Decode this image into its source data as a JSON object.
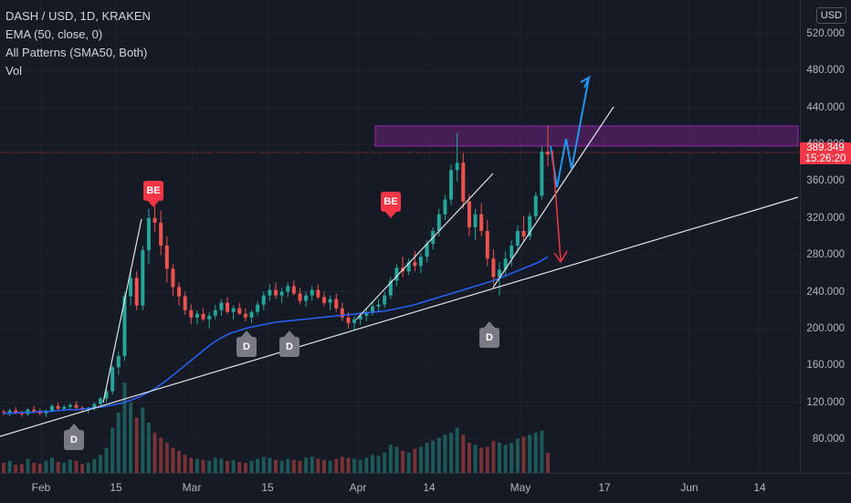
{
  "header": {
    "symbol_title": "DASH / USD, 1D, KRAKEN",
    "indicators": [
      "EMA (50, close, 0)",
      "All Patterns (SMA50, Both)",
      "Vol"
    ]
  },
  "currency_button": "USD",
  "price_axis": {
    "ticks": [
      "520.000",
      "480.000",
      "440.000",
      "400.000",
      "360.000",
      "320.000",
      "280.000",
      "240.000",
      "200.000",
      "160.000",
      "120.000",
      "80.000"
    ],
    "current_price": "389.349",
    "countdown": "15:26:20"
  },
  "time_axis": {
    "ticks": [
      "Feb",
      "15",
      "Mar",
      "15",
      "Apr",
      "14",
      "May",
      "17",
      "Jun",
      "14"
    ]
  },
  "pattern_labels": {
    "bearish": [
      "BE",
      "BE"
    ],
    "doji": [
      "D",
      "D",
      "D",
      "D"
    ]
  },
  "colors": {
    "up": "#26a69a",
    "down": "#ef5350",
    "ema": "#2962ff",
    "zone": "#9c27b0",
    "arrow_up": "#2196f3",
    "arrow_down": "#f23645"
  },
  "chart_data": {
    "type": "candlestick",
    "ylim": [
      60,
      530
    ],
    "candles": [
      [
        110,
        112,
        106,
        109
      ],
      [
        109,
        113,
        105,
        111
      ],
      [
        111,
        115,
        107,
        108
      ],
      [
        108,
        111,
        104,
        107
      ],
      [
        107,
        114,
        105,
        112
      ],
      [
        112,
        116,
        108,
        110
      ],
      [
        110,
        113,
        106,
        108
      ],
      [
        108,
        112,
        104,
        111
      ],
      [
        111,
        118,
        109,
        116
      ],
      [
        116,
        120,
        111,
        113
      ],
      [
        113,
        117,
        110,
        115
      ],
      [
        115,
        119,
        112,
        117
      ],
      [
        117,
        121,
        113,
        114
      ],
      [
        114,
        116,
        110,
        112
      ],
      [
        112,
        115,
        108,
        113
      ],
      [
        113,
        120,
        111,
        118
      ],
      [
        118,
        126,
        115,
        124
      ],
      [
        124,
        135,
        120,
        132
      ],
      [
        132,
        160,
        128,
        158
      ],
      [
        158,
        175,
        150,
        170
      ],
      [
        170,
        240,
        165,
        235
      ],
      [
        235,
        265,
        225,
        255
      ],
      [
        255,
        262,
        220,
        225
      ],
      [
        225,
        290,
        220,
        285
      ],
      [
        285,
        330,
        270,
        320
      ],
      [
        320,
        340,
        305,
        315
      ],
      [
        315,
        328,
        280,
        290
      ],
      [
        290,
        300,
        250,
        265
      ],
      [
        265,
        270,
        235,
        245
      ],
      [
        245,
        250,
        225,
        235
      ],
      [
        235,
        240,
        215,
        220
      ],
      [
        220,
        226,
        205,
        212
      ],
      [
        212,
        220,
        205,
        216
      ],
      [
        216,
        222,
        208,
        210
      ],
      [
        210,
        218,
        200,
        214
      ],
      [
        214,
        226,
        210,
        220
      ],
      [
        220,
        232,
        214,
        228
      ],
      [
        228,
        234,
        216,
        218
      ],
      [
        218,
        225,
        210,
        222
      ],
      [
        222,
        228,
        215,
        216
      ],
      [
        216,
        222,
        208,
        212
      ],
      [
        212,
        220,
        206,
        218
      ],
      [
        218,
        230,
        214,
        226
      ],
      [
        226,
        240,
        220,
        236
      ],
      [
        236,
        248,
        230,
        242
      ],
      [
        242,
        250,
        232,
        236
      ],
      [
        236,
        244,
        228,
        240
      ],
      [
        240,
        250,
        234,
        246
      ],
      [
        246,
        252,
        236,
        238
      ],
      [
        238,
        244,
        226,
        230
      ],
      [
        230,
        240,
        224,
        236
      ],
      [
        236,
        246,
        230,
        242
      ],
      [
        242,
        248,
        232,
        234
      ],
      [
        234,
        240,
        224,
        228
      ],
      [
        228,
        236,
        220,
        232
      ],
      [
        232,
        238,
        218,
        222
      ],
      [
        222,
        228,
        208,
        212
      ],
      [
        212,
        218,
        200,
        206
      ],
      [
        206,
        214,
        198,
        210
      ],
      [
        210,
        218,
        204,
        214
      ],
      [
        214,
        222,
        208,
        218
      ],
      [
        218,
        228,
        214,
        224
      ],
      [
        224,
        232,
        218,
        226
      ],
      [
        226,
        240,
        222,
        236
      ],
      [
        236,
        256,
        232,
        252
      ],
      [
        252,
        270,
        246,
        266
      ],
      [
        266,
        278,
        256,
        262
      ],
      [
        262,
        276,
        258,
        272
      ],
      [
        272,
        284,
        262,
        268
      ],
      [
        268,
        282,
        260,
        278
      ],
      [
        278,
        296,
        272,
        292
      ],
      [
        292,
        310,
        286,
        306
      ],
      [
        306,
        330,
        300,
        324
      ],
      [
        324,
        345,
        318,
        340
      ],
      [
        340,
        378,
        334,
        372
      ],
      [
        372,
        412,
        360,
        380
      ],
      [
        380,
        390,
        330,
        338
      ],
      [
        338,
        346,
        300,
        310
      ],
      [
        310,
        330,
        296,
        324
      ],
      [
        324,
        336,
        300,
        306
      ],
      [
        306,
        318,
        268,
        276
      ],
      [
        276,
        286,
        248,
        256
      ],
      [
        256,
        272,
        236,
        264
      ],
      [
        264,
        284,
        256,
        276
      ],
      [
        276,
        296,
        268,
        290
      ],
      [
        290,
        312,
        282,
        306
      ],
      [
        306,
        322,
        294,
        300
      ],
      [
        300,
        326,
        296,
        322
      ],
      [
        322,
        348,
        318,
        344
      ],
      [
        344,
        398,
        340,
        392
      ],
      [
        392,
        420,
        376,
        389
      ]
    ],
    "ema50": [
      108,
      108,
      109,
      109,
      110,
      110,
      111,
      112,
      112,
      113,
      114,
      115,
      117,
      119,
      122,
      126,
      131,
      137,
      144,
      152,
      160,
      168,
      176,
      184,
      190,
      195,
      198,
      201,
      203,
      205,
      207,
      208,
      209,
      210,
      211,
      212,
      213,
      214,
      215,
      216,
      217,
      218,
      219,
      221,
      223,
      225,
      228,
      231,
      234,
      237,
      240,
      243,
      246,
      249,
      252,
      256,
      260,
      264,
      268,
      272,
      278
    ],
    "volume": [
      10,
      12,
      8,
      9,
      14,
      10,
      9,
      12,
      15,
      11,
      10,
      13,
      12,
      9,
      10,
      14,
      18,
      25,
      45,
      60,
      90,
      70,
      55,
      65,
      50,
      40,
      35,
      30,
      25,
      22,
      18,
      15,
      14,
      13,
      12,
      15,
      14,
      12,
      13,
      11,
      10,
      12,
      14,
      16,
      15,
      13,
      12,
      14,
      13,
      12,
      15,
      16,
      14,
      13,
      12,
      14,
      16,
      15,
      14,
      13,
      15,
      18,
      17,
      20,
      28,
      26,
      22,
      20,
      24,
      26,
      30,
      32,
      35,
      38,
      40,
      45,
      38,
      30,
      28,
      25,
      26,
      32,
      30,
      28,
      30,
      34,
      36,
      38,
      40,
      42,
      20
    ]
  }
}
